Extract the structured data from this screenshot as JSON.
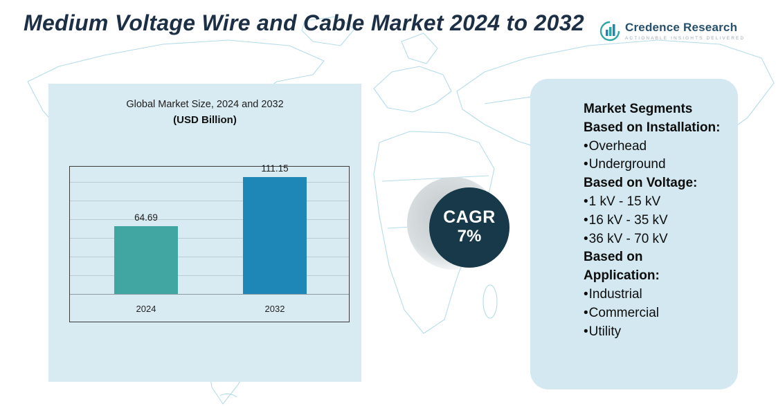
{
  "title": "Medium Voltage Wire and Cable Market 2024 to 2032",
  "logo": {
    "name": "Credence Research",
    "tagline": "Actionable Insights Delivered"
  },
  "chart_data": {
    "type": "bar",
    "title": "Global Market Size, 2024 and 2032",
    "subtitle": "(USD Billion)",
    "categories": [
      "2024",
      "2032"
    ],
    "values": [
      64.69,
      111.15
    ],
    "bar_colors": [
      "#41a6a1",
      "#1e87b8"
    ],
    "xlabel": "",
    "ylabel": "",
    "ylim": [
      0,
      120
    ],
    "grid": true,
    "legend": false
  },
  "cagr": {
    "label": "CAGR",
    "value": "7%"
  },
  "segments_panel": {
    "items": [
      {
        "style": "heading",
        "text": "Market Segments"
      },
      {
        "style": "heading",
        "text": "Based on Installation:"
      },
      {
        "style": "bullet",
        "text": "Overhead"
      },
      {
        "style": "bullet",
        "text": "Underground"
      },
      {
        "style": "heading",
        "text": "Based on Voltage:"
      },
      {
        "style": "bullet",
        "text": "1 kV - 15 kV"
      },
      {
        "style": "bullet",
        "text": "16 kV - 35 kV"
      },
      {
        "style": "bullet",
        "text": "36 kV - 70 kV"
      },
      {
        "style": "heading",
        "text": "Based on"
      },
      {
        "style": "heading",
        "text": "Application:"
      },
      {
        "style": "bullet",
        "text": "Industrial"
      },
      {
        "style": "bullet",
        "text": "Commercial"
      },
      {
        "style": "bullet",
        "text": "Utility"
      }
    ]
  },
  "colors": {
    "accent_teal": "#41a6a1",
    "accent_blue": "#1e87b8",
    "cagr_circle": "#17394a",
    "panel_bg": "#d9ebf2",
    "map_line": "#b5dcea",
    "title_text": "#1c2f45"
  }
}
